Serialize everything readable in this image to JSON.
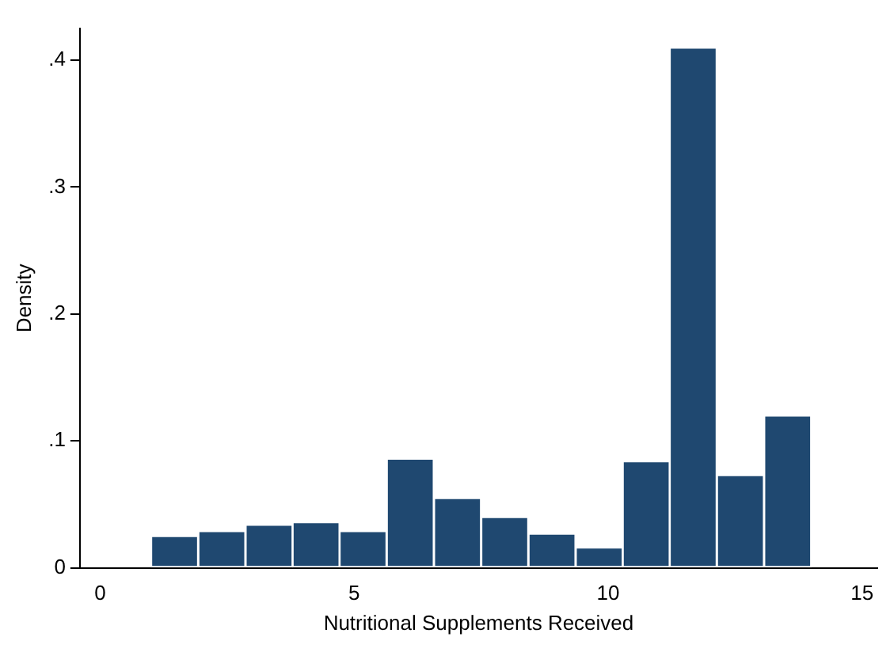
{
  "chart_data": {
    "type": "histogram",
    "xlabel": "Nutritional Supplements Received",
    "ylabel": "Density",
    "color": "#1f4870",
    "bins": [
      1,
      1.93,
      2.86,
      3.79,
      4.71,
      5.64,
      6.57,
      7.5,
      8.43,
      9.36,
      10.29,
      11.21,
      12.14,
      13.07,
      14
    ],
    "values": [
      0.025,
      0.029,
      0.034,
      0.036,
      0.029,
      0.086,
      0.055,
      0.04,
      0.027,
      0.016,
      0.084,
      0.41,
      0.073,
      0.12
    ],
    "xlim": [
      -0.4,
      15.3
    ],
    "xticks": [
      0,
      5,
      10,
      15
    ],
    "ylim": [
      0,
      0.425
    ],
    "yticks": [
      0,
      {
        "value": 0.1,
        "label": ".1"
      },
      {
        "value": 0.2,
        "label": ".2"
      },
      {
        "value": 0.3,
        "label": ".3"
      },
      {
        "value": 0.4,
        "label": ".4"
      }
    ],
    "grid": false,
    "legend": false
  }
}
